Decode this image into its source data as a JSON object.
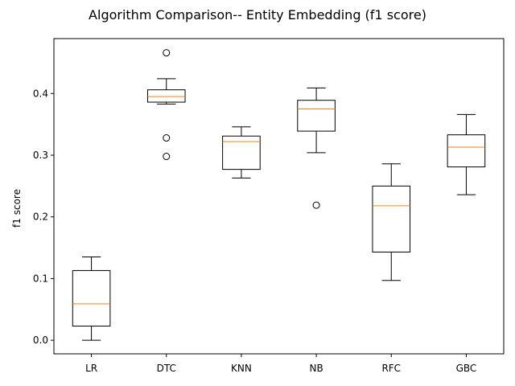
{
  "chart_data": {
    "type": "boxplot",
    "title": "Algorithm Comparison-- Entity Embedding (f1 score)",
    "xlabel": "",
    "ylabel": "f1 score",
    "ylim": [
      -0.022,
      0.489
    ],
    "yticks": [
      0.0,
      0.1,
      0.2,
      0.3,
      0.4
    ],
    "ytick_labels": [
      "0.0",
      "0.1",
      "0.2",
      "0.3",
      "0.4"
    ],
    "grid": false,
    "median_color": "#ff7f0e",
    "box_color": "#000000",
    "categories": [
      "LR",
      "DTC",
      "KNN",
      "NB",
      "RFC",
      "GBC"
    ],
    "boxes": [
      {
        "label": "LR",
        "whisker_low": 0.0,
        "q1": 0.023,
        "median": 0.059,
        "q3": 0.113,
        "whisker_high": 0.135,
        "outliers": []
      },
      {
        "label": "DTC",
        "whisker_low": 0.383,
        "q1": 0.386,
        "median": 0.395,
        "q3": 0.406,
        "whisker_high": 0.424,
        "outliers": [
          0.466,
          0.328,
          0.298
        ]
      },
      {
        "label": "KNN",
        "whisker_low": 0.263,
        "q1": 0.277,
        "median": 0.322,
        "q3": 0.331,
        "whisker_high": 0.346,
        "outliers": []
      },
      {
        "label": "NB",
        "whisker_low": 0.304,
        "q1": 0.339,
        "median": 0.375,
        "q3": 0.389,
        "whisker_high": 0.409,
        "outliers": [
          0.219
        ]
      },
      {
        "label": "RFC",
        "whisker_low": 0.097,
        "q1": 0.143,
        "median": 0.218,
        "q3": 0.25,
        "whisker_high": 0.286,
        "outliers": []
      },
      {
        "label": "GBC",
        "whisker_low": 0.236,
        "q1": 0.281,
        "median": 0.313,
        "q3": 0.333,
        "whisker_high": 0.366,
        "outliers": []
      }
    ]
  }
}
